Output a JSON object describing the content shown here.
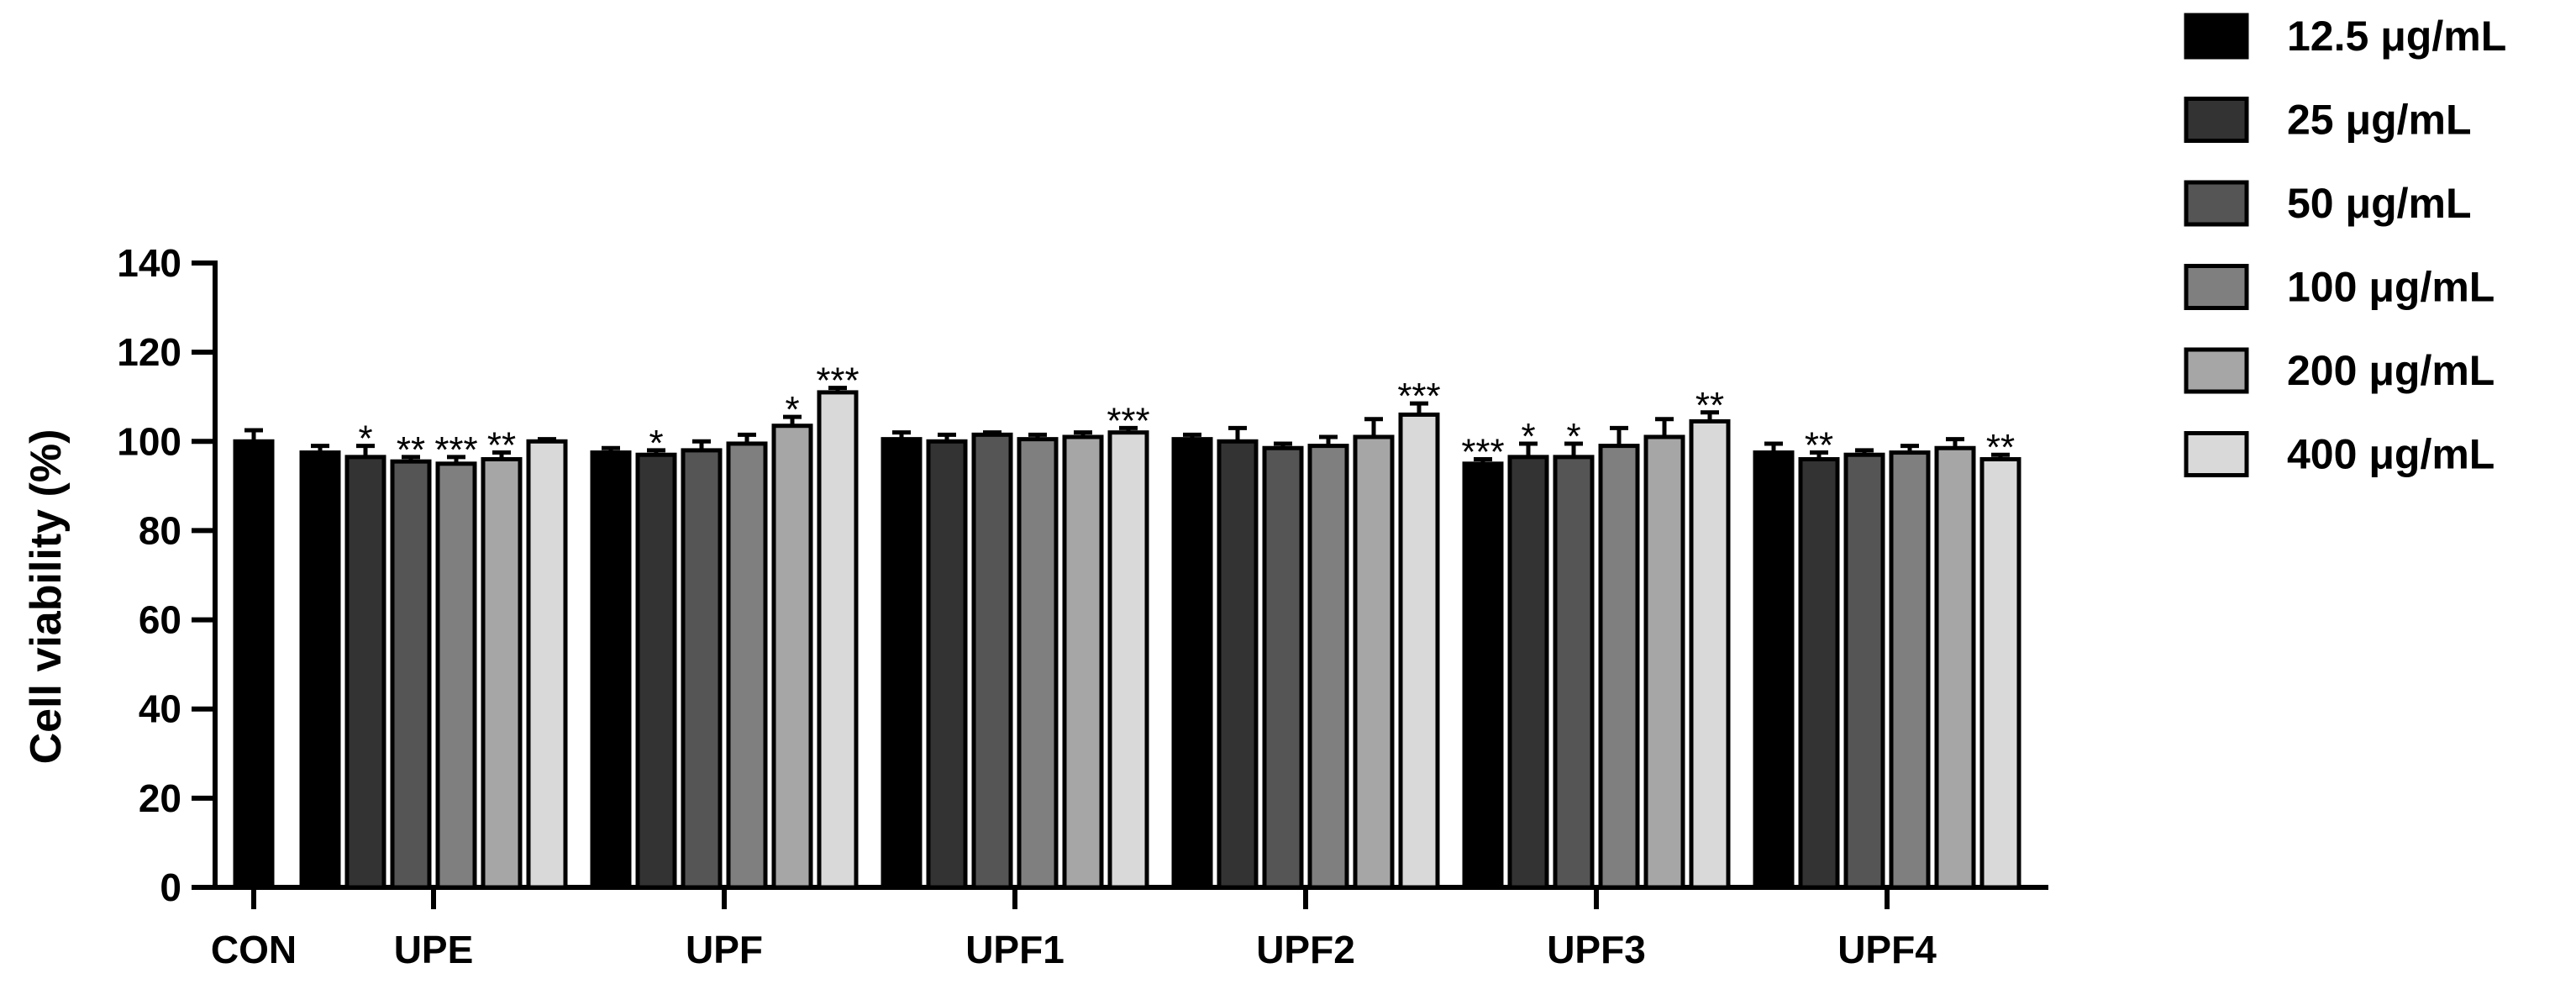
{
  "chart_data": {
    "type": "bar",
    "ylabel": "Cell viability (%)",
    "ylim": [
      0,
      140
    ],
    "yticks": [
      0,
      20,
      40,
      60,
      80,
      100,
      120,
      140
    ],
    "legend_position": "top-right",
    "control": {
      "label": "CON",
      "value": 100,
      "error": 2.5,
      "color": "#000000"
    },
    "categories": [
      "UPE",
      "UPF",
      "UPF1",
      "UPF2",
      "UPF3",
      "UPF4"
    ],
    "series": [
      {
        "name": "12.5 μg/mL",
        "color": "#000000",
        "values": [
          97.5,
          97.5,
          100.5,
          100.5,
          95.0,
          97.5
        ],
        "errors": [
          1.5,
          1.0,
          1.5,
          1.0,
          1.0,
          2.0
        ],
        "sig": [
          "",
          "",
          "",
          "",
          "***",
          ""
        ]
      },
      {
        "name": "25 μg/mL",
        "color": "#333333",
        "values": [
          96.5,
          97.0,
          100.0,
          100.0,
          96.5,
          96.0
        ],
        "errors": [
          2.5,
          1.0,
          1.5,
          3.0,
          3.0,
          1.5
        ],
        "sig": [
          "*",
          "*",
          "",
          "",
          "*",
          "**"
        ]
      },
      {
        "name": "50 μg/mL",
        "color": "#555555",
        "values": [
          95.5,
          98.0,
          101.5,
          98.5,
          96.5,
          97.0
        ],
        "errors": [
          1.0,
          2.0,
          0.5,
          1.0,
          3.0,
          1.0
        ],
        "sig": [
          "**",
          "",
          "",
          "",
          "*",
          ""
        ]
      },
      {
        "name": "100 μg/mL",
        "color": "#7f7f7f",
        "values": [
          95.0,
          99.5,
          100.5,
          99.0,
          99.0,
          97.5
        ],
        "errors": [
          1.5,
          2.0,
          1.0,
          2.0,
          4.0,
          1.5
        ],
        "sig": [
          "***",
          "",
          "",
          "",
          "",
          ""
        ]
      },
      {
        "name": "200 μg/mL",
        "color": "#a6a6a6",
        "values": [
          96.0,
          103.5,
          101.0,
          101.0,
          101.0,
          98.5
        ],
        "errors": [
          1.5,
          2.0,
          1.0,
          4.0,
          4.0,
          2.0
        ],
        "sig": [
          "**",
          "*",
          "",
          "",
          "",
          ""
        ]
      },
      {
        "name": "400 μg/mL",
        "color": "#d9d9d9",
        "values": [
          100.0,
          111.0,
          102.0,
          106.0,
          104.5,
          96.0
        ],
        "errors": [
          0.5,
          1.0,
          1.0,
          2.5,
          2.0,
          1.0
        ],
        "sig": [
          "",
          "***",
          "***",
          "***",
          "**",
          "**"
        ]
      }
    ]
  }
}
